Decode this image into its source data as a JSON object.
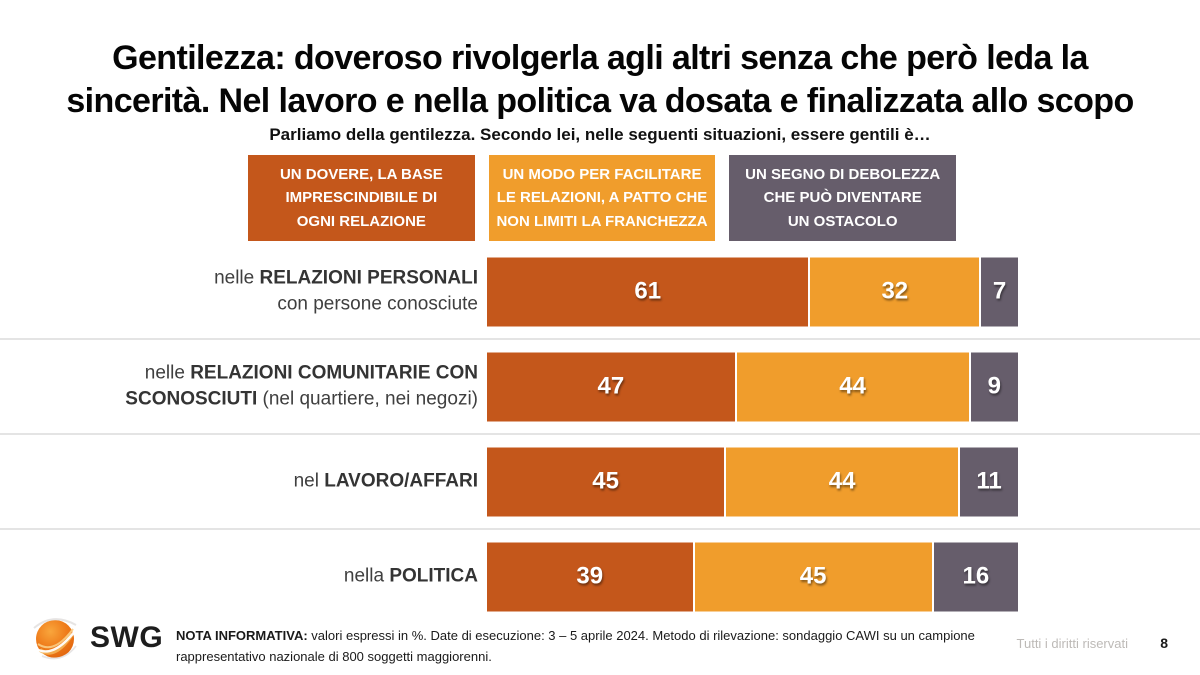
{
  "page": {
    "title_lines": [
      "Gentilezza: doveroso rivolgerla agli altri senza che però leda la",
      "sincerità. Nel lavoro e nella politica va dosata e finalizzata allo scopo"
    ],
    "question": "Parliamo della gentilezza. Secondo lei, nelle seguenti situazioni, essere gentili è…",
    "footer": {
      "nota_bold": "NOTA INFORMATIVA:",
      "nota_lines": [
        " valori espressi in %. Date di esecuzione: 3 – 5 aprile 2024. Metodo di rilevazione: sondaggio CAWI su un campione",
        "rappresentativo nazionale di 800 soggetti maggiorenni."
      ],
      "rights": "Tutti i diritti riservati",
      "page_number": "8",
      "logo_text": "SWG",
      "logo_icon": "swg-globe-icon"
    }
  },
  "colors": {
    "duty_orange": "#c4571b",
    "facilitate_orange": "#f09d2c",
    "weakness_gray": "#665d6b",
    "divider": "#e4e4e4",
    "label_text": "#3f3f3f"
  },
  "chart_data": {
    "type": "bar",
    "subtype": "horizontal-stacked",
    "title": "Parliamo della gentilezza. Secondo lei, nelle seguenti situazioni, essere gentili è…",
    "value_format": "percent-integer",
    "xlim": [
      0,
      100
    ],
    "colors": [
      "#c4571b",
      "#f09d2c",
      "#665d6b"
    ],
    "legend_position": "top",
    "legend": [
      {
        "name": "UN DOVERE, LA BASE IMPRESCINDIBILE DI OGNI RELAZIONE",
        "lines": [
          "UN DOVERE, LA BASE",
          "IMPRESCINDIBILE DI",
          "OGNI RELAZIONE"
        ]
      },
      {
        "name": "UN MODO PER FACILITARE LE RELAZIONI, A PATTO CHE NON LIMITI LA FRANCHEZZA",
        "lines": [
          "UN MODO PER FACILITARE",
          "LE RELAZIONI, A PATTO CHE",
          "NON LIMITI LA FRANCHEZZA"
        ]
      },
      {
        "name": "UN SEGNO DI DEBOLEZZA CHE PUÒ DIVENTARE UN OSTACOLO",
        "lines": [
          "UN SEGNO DI DEBOLEZZA",
          "CHE PUÒ DIVENTARE",
          "UN OSTACOLO"
        ]
      }
    ],
    "categories": [
      "nelle RELAZIONI PERSONALI con persone conosciute",
      "nelle RELAZIONI COMUNITARIE CON SCONOSCIUTI (nel quartiere, nei negozi)",
      "nel LAVORO/AFFARI",
      "nella POLITICA"
    ],
    "series": [
      {
        "name": "UN DOVERE, LA BASE IMPRESCINDIBILE DI OGNI RELAZIONE",
        "values": [
          61,
          47,
          45,
          39
        ]
      },
      {
        "name": "UN MODO PER FACILITARE LE RELAZIONI, A PATTO CHE NON LIMITI LA FRANCHEZZA",
        "values": [
          32,
          44,
          44,
          45
        ]
      },
      {
        "name": "UN SEGNO DI DEBOLEZZA CHE PUÒ DIVENTARE UN OSTACOLO",
        "values": [
          7,
          9,
          11,
          16
        ]
      }
    ],
    "rows": [
      {
        "label": [
          [
            {
              "t": "nelle ",
              "b": false
            },
            {
              "t": "RELAZIONI PERSONALI",
              "b": true
            }
          ],
          [
            {
              "t": "con persone conosciute",
              "b": false
            }
          ]
        ],
        "values": [
          61,
          32,
          7
        ]
      },
      {
        "label": [
          [
            {
              "t": "nelle ",
              "b": false
            },
            {
              "t": "RELAZIONI COMUNITARIE CON",
              "b": true
            }
          ],
          [
            {
              "t": "SCONOSCIUTI",
              "b": true
            },
            {
              "t": " (nel quartiere, nei negozi)",
              "b": false
            }
          ]
        ],
        "values": [
          47,
          44,
          9
        ]
      },
      {
        "label": [
          [
            {
              "t": "nel ",
              "b": false
            },
            {
              "t": "LAVORO/AFFARI",
              "b": true
            }
          ]
        ],
        "values": [
          45,
          44,
          11
        ]
      },
      {
        "label": [
          [
            {
              "t": "nella ",
              "b": false
            },
            {
              "t": "POLITICA",
              "b": true
            }
          ]
        ],
        "values": [
          39,
          45,
          16
        ]
      }
    ]
  }
}
